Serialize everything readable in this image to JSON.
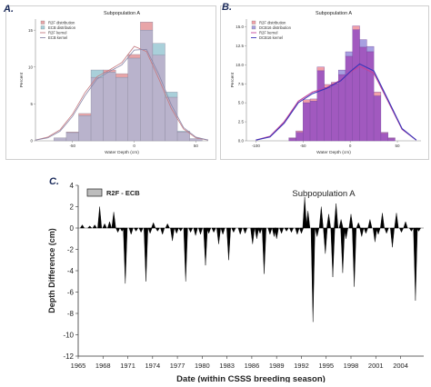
{
  "panels": {
    "a": {
      "label": "A.",
      "title": "Subpopulation A",
      "xlabel": "Water Depth (cm)",
      "ylabel": "Percent"
    },
    "b": {
      "label": "B.",
      "title": "Subpopulation A",
      "xlabel": "Water Depth (cm)",
      "ylabel": "Percent"
    },
    "c": {
      "label": "C.",
      "title": "Subpopulation A",
      "xlabel": "Date (within CSSS breeding season)",
      "ylabel": "Depth Difference (cm)",
      "legend": "R2F - ECB"
    }
  },
  "colors": {
    "a_r2f_fill": "#e8a5a8",
    "a_ecb_fill": "#a9d0da",
    "a_overlap": "#b9b3cc",
    "a_r2f_line": "#c47a80",
    "a_ecb_line": "#8a86a8",
    "b_r2f_fill": "#f1a0a8",
    "b_ecb_fill": "#a7a0e0",
    "b_overlap": "#a159bf",
    "b_r2f_line": "#c2459a",
    "b_ecb_line": "#3a34b8",
    "c_bar": "#000000",
    "c_legend_fill": "#bdbdbd"
  },
  "chart_data": [
    {
      "type": "bar",
      "title": "Subpopulation A",
      "xlabel": "Water Depth (cm)",
      "ylabel": "Percent",
      "x_ticks": [
        -50,
        0,
        50
      ],
      "y_ticks": [
        0,
        5,
        10,
        15
      ],
      "xlim": [
        -80,
        60
      ],
      "ylim": [
        0,
        16.5
      ],
      "bin_start": -65,
      "bin_width": 10,
      "legend": [
        "R2F distribution",
        "ECB distribution",
        "R2F kernel",
        "ECB kernel"
      ],
      "series": [
        {
          "name": "R2F distribution",
          "values": [
            0.4,
            1.2,
            3.7,
            8.6,
            9.6,
            9.1,
            11.7,
            16.1,
            11.6,
            5.9,
            1.2,
            0.3
          ]
        },
        {
          "name": "ECB distribution",
          "values": [
            0.4,
            1.1,
            3.4,
            9.6,
            9.3,
            8.6,
            11.2,
            15.0,
            13.2,
            6.6,
            1.3,
            0.3
          ]
        }
      ],
      "kernels": {
        "x": [
          -80,
          -70,
          -60,
          -50,
          -40,
          -30,
          -20,
          -10,
          0,
          10,
          20,
          30,
          40,
          50,
          60
        ],
        "r2f": [
          0.1,
          0.5,
          1.5,
          3.6,
          6.5,
          8.7,
          9.6,
          10.6,
          12.8,
          12.1,
          8.4,
          4.4,
          1.6,
          0.4,
          0.1
        ],
        "ecb": [
          0.1,
          0.4,
          1.3,
          3.3,
          6.1,
          8.4,
          9.4,
          10.3,
          12.3,
          12.4,
          9.0,
          4.9,
          1.8,
          0.5,
          0.1
        ]
      }
    },
    {
      "type": "bar",
      "title": "Subpopulation A",
      "xlabel": "Water Depth (cm)",
      "ylabel": "Percent",
      "x_ticks": [
        -100,
        -50,
        0,
        50
      ],
      "y_ticks": [
        0,
        2.5,
        5.0,
        7.5,
        10.0,
        12.5,
        15.0
      ],
      "xlim": [
        -110,
        75
      ],
      "ylim": [
        0,
        16
      ],
      "bin_start": -65,
      "bin_width": 10,
      "legend": [
        "R2F distribution",
        "DCB16 distribution",
        "R2F kernel",
        "DCB16 kernel"
      ],
      "series": [
        {
          "name": "R2F distribution",
          "values": [
            0.4,
            1.3,
            5.4,
            5.5,
            9.7,
            7.4,
            7.7,
            8.7,
            11.1,
            15.1,
            12.3,
            11.7,
            6.4,
            1.1,
            0.4
          ]
        },
        {
          "name": "DCB16 distribution",
          "values": [
            0.3,
            1.1,
            5.0,
            5.2,
            9.2,
            7.0,
            7.5,
            9.3,
            11.7,
            14.6,
            13.3,
            12.4,
            5.9,
            1.0,
            0.3
          ]
        }
      ],
      "bin_width_b": 7.5,
      "kernels": {
        "x": [
          -100,
          -85,
          -70,
          -55,
          -40,
          -25,
          -10,
          0,
          10,
          25,
          40,
          55,
          70
        ],
        "r2f": [
          0.1,
          0.6,
          2.5,
          5.2,
          6.4,
          7.0,
          8.0,
          9.0,
          9.8,
          8.9,
          5.2,
          1.5,
          0.1
        ],
        "ecb": [
          0.1,
          0.5,
          2.3,
          5.0,
          6.2,
          6.9,
          7.9,
          9.1,
          10.1,
          9.2,
          5.4,
          1.6,
          0.1
        ]
      }
    },
    {
      "type": "bar",
      "title": "Subpopulation A",
      "xlabel": "Date (within CSSS breeding season)",
      "ylabel": "Depth Difference (cm)",
      "legend": [
        "R2F - ECB"
      ],
      "x_ticks": [
        "1965",
        "1968",
        "1971",
        "1974",
        "1977",
        "1980",
        "1983",
        "1986",
        "1989",
        "1992",
        "1995",
        "1998",
        "2001",
        "2004"
      ],
      "y_ticks": [
        4,
        2,
        0,
        -2,
        -4,
        -6,
        -8,
        -10,
        -12
      ],
      "xlim": [
        1965,
        2006.8
      ],
      "ylim": [
        -12,
        4
      ],
      "events": [
        [
          1965.5,
          0.3
        ],
        [
          1966.4,
          0.2
        ],
        [
          1967.0,
          0.3
        ],
        [
          1967.6,
          2.0
        ],
        [
          1968.2,
          0.4
        ],
        [
          1968.8,
          0.6
        ],
        [
          1969.3,
          1.5
        ],
        [
          1969.8,
          -0.4
        ],
        [
          1970.3,
          -0.3
        ],
        [
          1970.7,
          -5.2
        ],
        [
          1971.4,
          -0.6
        ],
        [
          1972.0,
          -0.3
        ],
        [
          1972.6,
          -0.4
        ],
        [
          1973.2,
          -5.0
        ],
        [
          1973.7,
          -0.5
        ],
        [
          1974.1,
          0.5
        ],
        [
          1974.6,
          -0.3
        ],
        [
          1975.2,
          -0.6
        ],
        [
          1975.8,
          0.4
        ],
        [
          1976.4,
          -1.2
        ],
        [
          1976.9,
          -0.5
        ],
        [
          1977.4,
          -0.3
        ],
        [
          1978.0,
          -5.0
        ],
        [
          1978.6,
          -0.4
        ],
        [
          1979.2,
          -0.7
        ],
        [
          1979.8,
          -0.6
        ],
        [
          1980.4,
          -3.5
        ],
        [
          1980.8,
          -0.5
        ],
        [
          1981.4,
          -0.4
        ],
        [
          1982.0,
          -1.5
        ],
        [
          1982.5,
          -0.6
        ],
        [
          1983.2,
          -3.0
        ],
        [
          1983.8,
          -0.4
        ],
        [
          1984.6,
          -0.6
        ],
        [
          1985.2,
          -0.5
        ],
        [
          1986.1,
          -1.5
        ],
        [
          1986.6,
          -1.0
        ],
        [
          1987.0,
          -0.5
        ],
        [
          1987.5,
          -4.3
        ],
        [
          1988.2,
          -0.6
        ],
        [
          1988.7,
          -0.8
        ],
        [
          1989.0,
          -1.0
        ],
        [
          1989.6,
          -0.5
        ],
        [
          1990.2,
          -0.3
        ],
        [
          1990.8,
          -0.4
        ],
        [
          1991.5,
          -0.6
        ],
        [
          1992.0,
          -0.5
        ],
        [
          1992.4,
          2.9
        ],
        [
          1992.8,
          1.6
        ],
        [
          1993.4,
          -8.8
        ],
        [
          1993.9,
          -0.8
        ],
        [
          1994.4,
          2.0
        ],
        [
          1994.9,
          -2.4
        ],
        [
          1995.3,
          1.3
        ],
        [
          1995.8,
          -4.6
        ],
        [
          1996.2,
          2.3
        ],
        [
          1996.8,
          0.8
        ],
        [
          1997.0,
          -4.2
        ],
        [
          1997.4,
          -1.0
        ],
        [
          1998.0,
          1.3
        ],
        [
          1998.4,
          -5.5
        ],
        [
          1998.9,
          0.5
        ],
        [
          1999.3,
          -0.8
        ],
        [
          1999.8,
          -0.5
        ],
        [
          2000.3,
          0.8
        ],
        [
          2000.9,
          -1.3
        ],
        [
          2001.3,
          -0.6
        ],
        [
          2001.8,
          1.4
        ],
        [
          2002.3,
          -0.5
        ],
        [
          2003.0,
          -1.8
        ],
        [
          2003.5,
          1.4
        ],
        [
          2004.1,
          -0.4
        ],
        [
          2004.6,
          0.6
        ],
        [
          2005.3,
          -0.3
        ],
        [
          2005.8,
          -6.8
        ],
        [
          2006.2,
          -0.3
        ]
      ]
    }
  ]
}
